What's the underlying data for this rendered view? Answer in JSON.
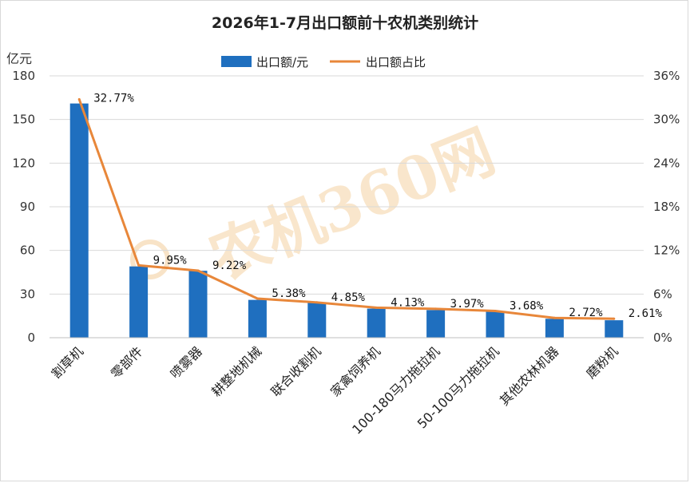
{
  "chart_data": {
    "type": "bar",
    "title": "2026年1-7月出口额前十农机类别统计",
    "ylabel": "亿元",
    "categories": [
      "割草机",
      "零部件",
      "喷雾器",
      "耕整地机械",
      "联合收割机",
      "家禽饲养机",
      "100-180马力拖拉机",
      "50-100马力拖拉机",
      "其他农林机器",
      "磨粉机"
    ],
    "series": [
      {
        "name": "出口额/元",
        "type": "bar",
        "axis": "left",
        "color": "#1f6fbf",
        "values": [
          161,
          49,
          46,
          26,
          24,
          20,
          19,
          18,
          13,
          12
        ]
      },
      {
        "name": "出口额占比",
        "type": "line",
        "axis": "right",
        "color": "#e8873a",
        "values": [
          32.77,
          9.95,
          9.22,
          5.38,
          4.85,
          4.13,
          3.97,
          3.68,
          2.72,
          2.61
        ],
        "labels": [
          "32.77%",
          "9.95%",
          "9.22%",
          "5.38%",
          "4.85%",
          "4.13%",
          "3.97%",
          "3.68%",
          "2.72%",
          "2.61%"
        ]
      }
    ],
    "yleft": {
      "lim": [
        0,
        180
      ],
      "ticks": [
        "0",
        "30",
        "60",
        "90",
        "120",
        "150",
        "180"
      ]
    },
    "yright": {
      "lim": [
        0,
        36
      ],
      "ticks": [
        "0%",
        "6%",
        "12%",
        "18%",
        "24%",
        "30%",
        "36%"
      ]
    },
    "legend": "top-center",
    "grid": "horizontal",
    "watermark": "农机360网"
  }
}
